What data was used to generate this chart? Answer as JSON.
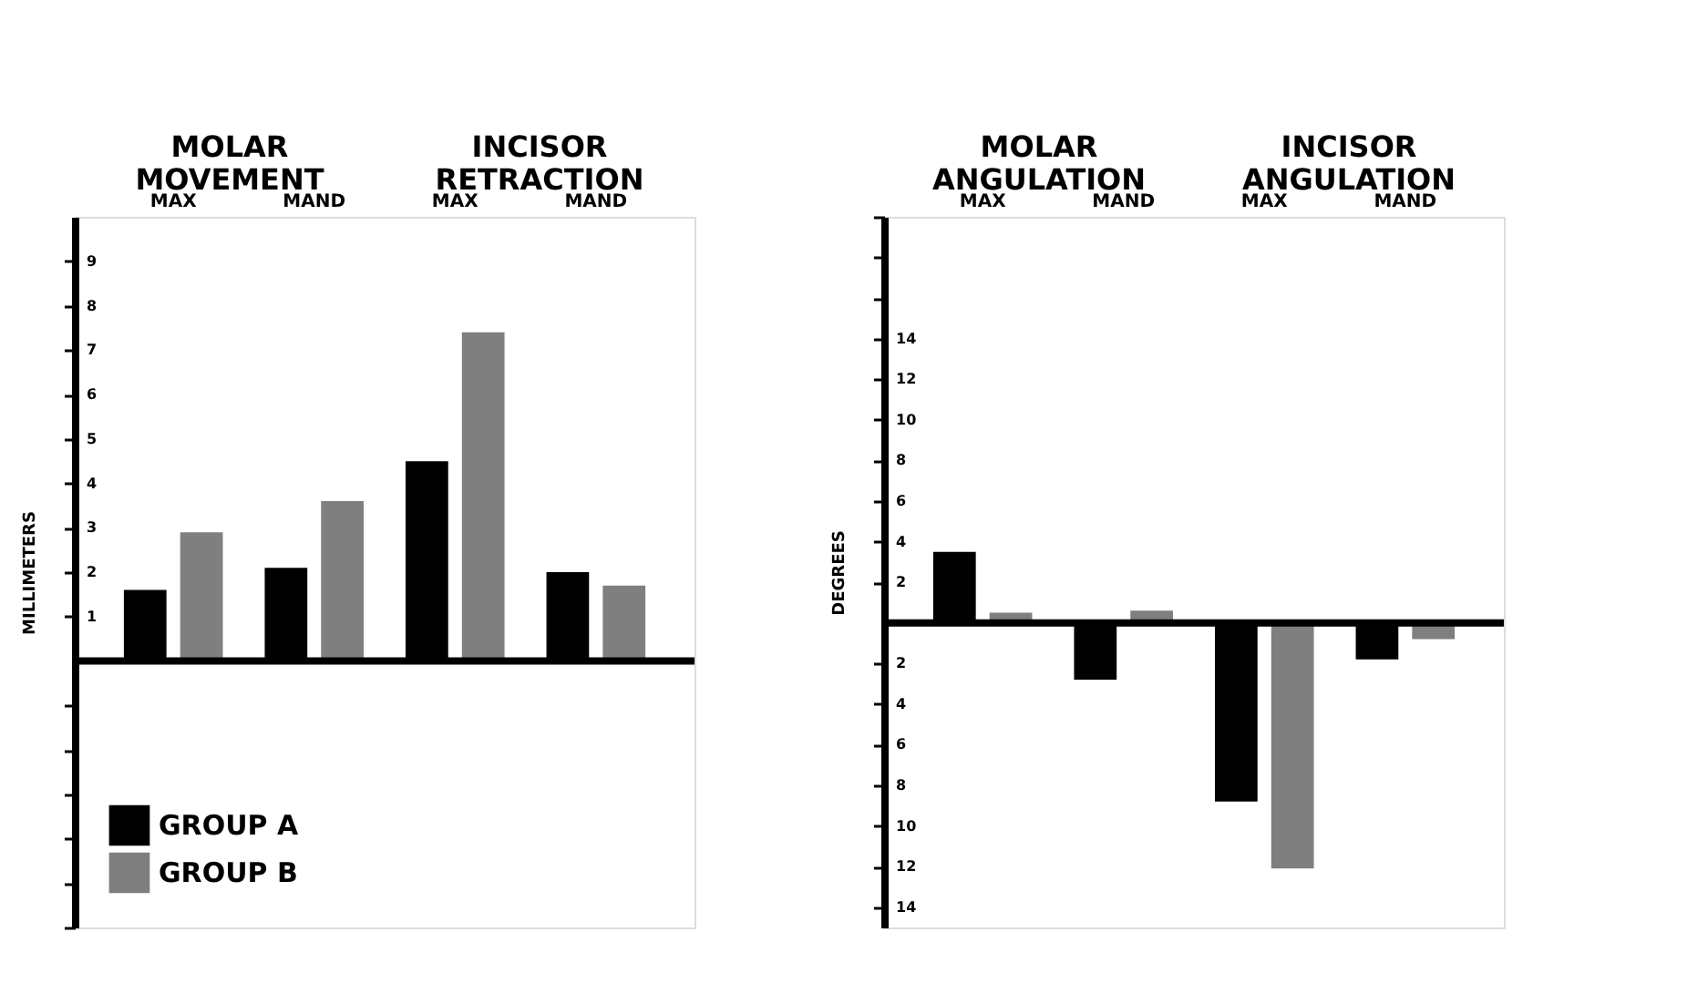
{
  "chart_data": [
    {
      "type": "bar",
      "ylabel": "MILLIMETERS",
      "categories": [
        "MAX",
        "MAND",
        "MAX",
        "MAND"
      ],
      "annotations": [
        "MOLAR MOVEMENT",
        "INCISOR RETRACTION"
      ],
      "series": [
        {
          "name": "GROUP A",
          "color": "#000000",
          "values": [
            1.6,
            2.1,
            4.5,
            2.0
          ]
        },
        {
          "name": "GROUP B",
          "color": "#7f7f7f",
          "values": [
            2.9,
            3.6,
            7.4,
            1.7
          ]
        }
      ],
      "ylim": [
        -6,
        10
      ],
      "yticks": [
        {
          "value": -6,
          "label": null
        },
        {
          "value": -5,
          "label": null
        },
        {
          "value": -4,
          "label": null
        },
        {
          "value": -3,
          "label": null
        },
        {
          "value": -2,
          "label": null
        },
        {
          "value": -1,
          "label": null
        },
        1,
        2,
        3,
        4,
        5,
        6,
        7,
        8,
        9
      ],
      "ref_lines": [
        {
          "axis": "y",
          "value": 0,
          "color": "#000000"
        }
      ],
      "legend": "bottom left",
      "grid": false
    },
    {
      "type": "bar",
      "ylabel": "DEGREES",
      "categories": [
        "MAX",
        "MAND",
        "MAX",
        "MAND"
      ],
      "annotations": [
        "MOLAR ANGULATION",
        "INCISOR ANGULATION"
      ],
      "series": [
        {
          "name": "GROUP A",
          "color": "#000000",
          "values": [
            3.5,
            -2.8,
            -8.8,
            -1.8
          ]
        },
        {
          "name": "GROUP B",
          "color": "#7f7f7f",
          "values": [
            0.5,
            0.6,
            -12.1,
            -0.8
          ]
        }
      ],
      "ylim": [
        -15,
        20
      ],
      "yticks": [
        {
          "value": -14,
          "label": "14"
        },
        {
          "value": -12,
          "label": "12"
        },
        {
          "value": -10,
          "label": "10"
        },
        {
          "value": -8,
          "label": "8"
        },
        {
          "value": -6,
          "label": "6"
        },
        {
          "value": -4,
          "label": "4"
        },
        {
          "value": -2,
          "label": "2"
        },
        2,
        4,
        6,
        8,
        10,
        12,
        14,
        {
          "value": 16,
          "label": null
        },
        {
          "value": 18,
          "label": null
        },
        {
          "value": 20,
          "label": null
        }
      ],
      "ref_lines": [
        {
          "axis": "y",
          "value": 0,
          "color": "#000000"
        }
      ],
      "legend": false,
      "grid": false
    }
  ]
}
